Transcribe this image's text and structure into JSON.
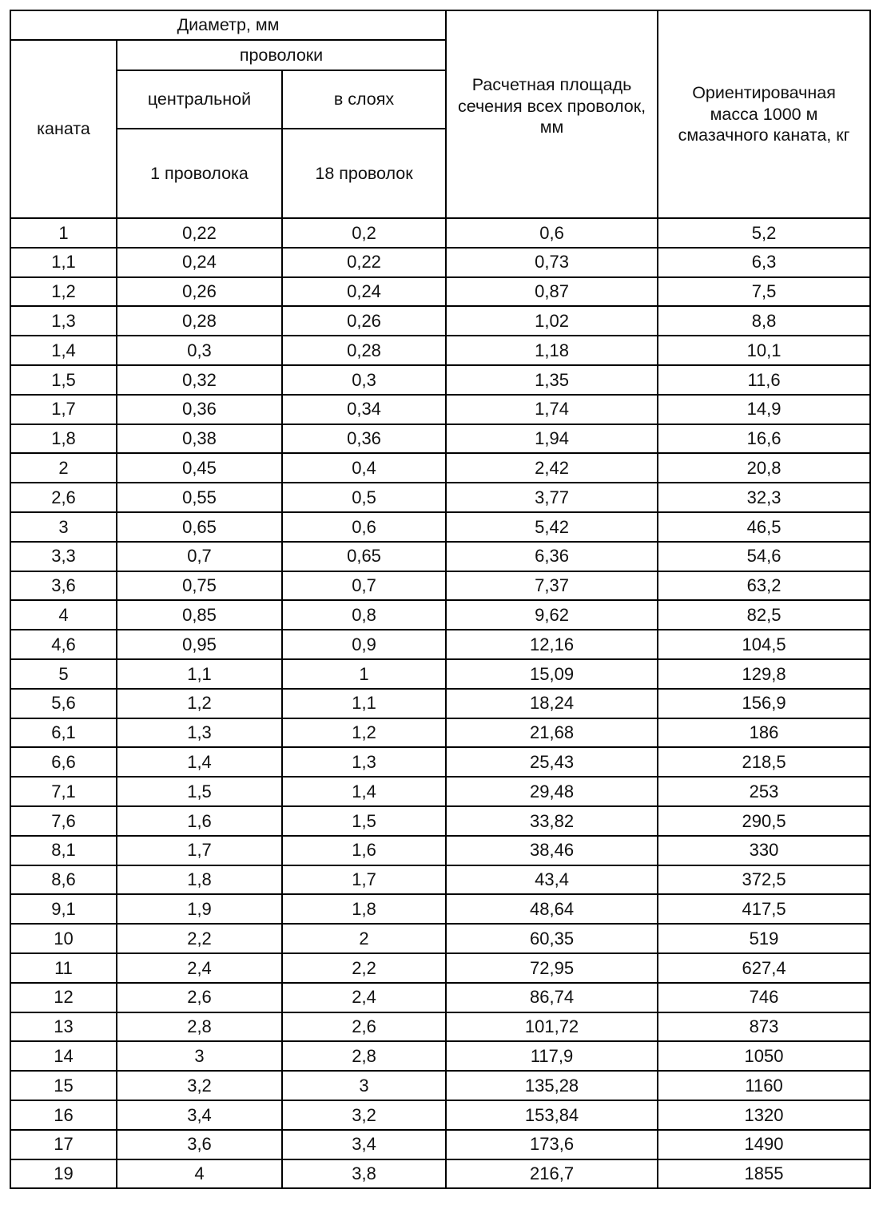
{
  "header": {
    "diameter": "Диаметр, мм",
    "rope": "каната",
    "wires": "проволоки",
    "central": "центральной",
    "layers": "в слоях",
    "central_count": "1 проволока",
    "layers_count": "18 проволок",
    "area": "Расчетная площадь сечения всех проволок, мм",
    "mass": "Ориентировачная масса 1000 м смазачного каната, кг"
  },
  "rows": [
    [
      "1",
      "0,22",
      "0,2",
      "0,6",
      "5,2"
    ],
    [
      "1,1",
      "0,24",
      "0,22",
      "0,73",
      "6,3"
    ],
    [
      "1,2",
      "0,26",
      "0,24",
      "0,87",
      "7,5"
    ],
    [
      "1,3",
      "0,28",
      "0,26",
      "1,02",
      "8,8"
    ],
    [
      "1,4",
      "0,3",
      "0,28",
      "1,18",
      "10,1"
    ],
    [
      "1,5",
      "0,32",
      "0,3",
      "1,35",
      "11,6"
    ],
    [
      "1,7",
      "0,36",
      "0,34",
      "1,74",
      "14,9"
    ],
    [
      "1,8",
      "0,38",
      "0,36",
      "1,94",
      "16,6"
    ],
    [
      "2",
      "0,45",
      "0,4",
      "2,42",
      "20,8"
    ],
    [
      "2,6",
      "0,55",
      "0,5",
      "3,77",
      "32,3"
    ],
    [
      "3",
      "0,65",
      "0,6",
      "5,42",
      "46,5"
    ],
    [
      "3,3",
      "0,7",
      "0,65",
      "6,36",
      "54,6"
    ],
    [
      "3,6",
      "0,75",
      "0,7",
      "7,37",
      "63,2"
    ],
    [
      "4",
      "0,85",
      "0,8",
      "9,62",
      "82,5"
    ],
    [
      "4,6",
      "0,95",
      "0,9",
      "12,16",
      "104,5"
    ],
    [
      "5",
      "1,1",
      "1",
      "15,09",
      "129,8"
    ],
    [
      "5,6",
      "1,2",
      "1,1",
      "18,24",
      "156,9"
    ],
    [
      "6,1",
      "1,3",
      "1,2",
      "21,68",
      "186"
    ],
    [
      "6,6",
      "1,4",
      "1,3",
      "25,43",
      "218,5"
    ],
    [
      "7,1",
      "1,5",
      "1,4",
      "29,48",
      "253"
    ],
    [
      "7,6",
      "1,6",
      "1,5",
      "33,82",
      "290,5"
    ],
    [
      "8,1",
      "1,7",
      "1,6",
      "38,46",
      "330"
    ],
    [
      "8,6",
      "1,8",
      "1,7",
      "43,4",
      "372,5"
    ],
    [
      "9,1",
      "1,9",
      "1,8",
      "48,64",
      "417,5"
    ],
    [
      "10",
      "2,2",
      "2",
      "60,35",
      "519"
    ],
    [
      "11",
      "2,4",
      "2,2",
      "72,95",
      "627,4"
    ],
    [
      "12",
      "2,6",
      "2,4",
      "86,74",
      "746"
    ],
    [
      "13",
      "2,8",
      "2,6",
      "101,72",
      "873"
    ],
    [
      "14",
      "3",
      "2,8",
      "117,9",
      "1050"
    ],
    [
      "15",
      "3,2",
      "3",
      "135,28",
      "1160"
    ],
    [
      "16",
      "3,4",
      "3,2",
      "153,84",
      "1320"
    ],
    [
      "17",
      "3,6",
      "3,4",
      "173,6",
      "1490"
    ],
    [
      "19",
      "4",
      "3,8",
      "216,7",
      "1855"
    ]
  ]
}
